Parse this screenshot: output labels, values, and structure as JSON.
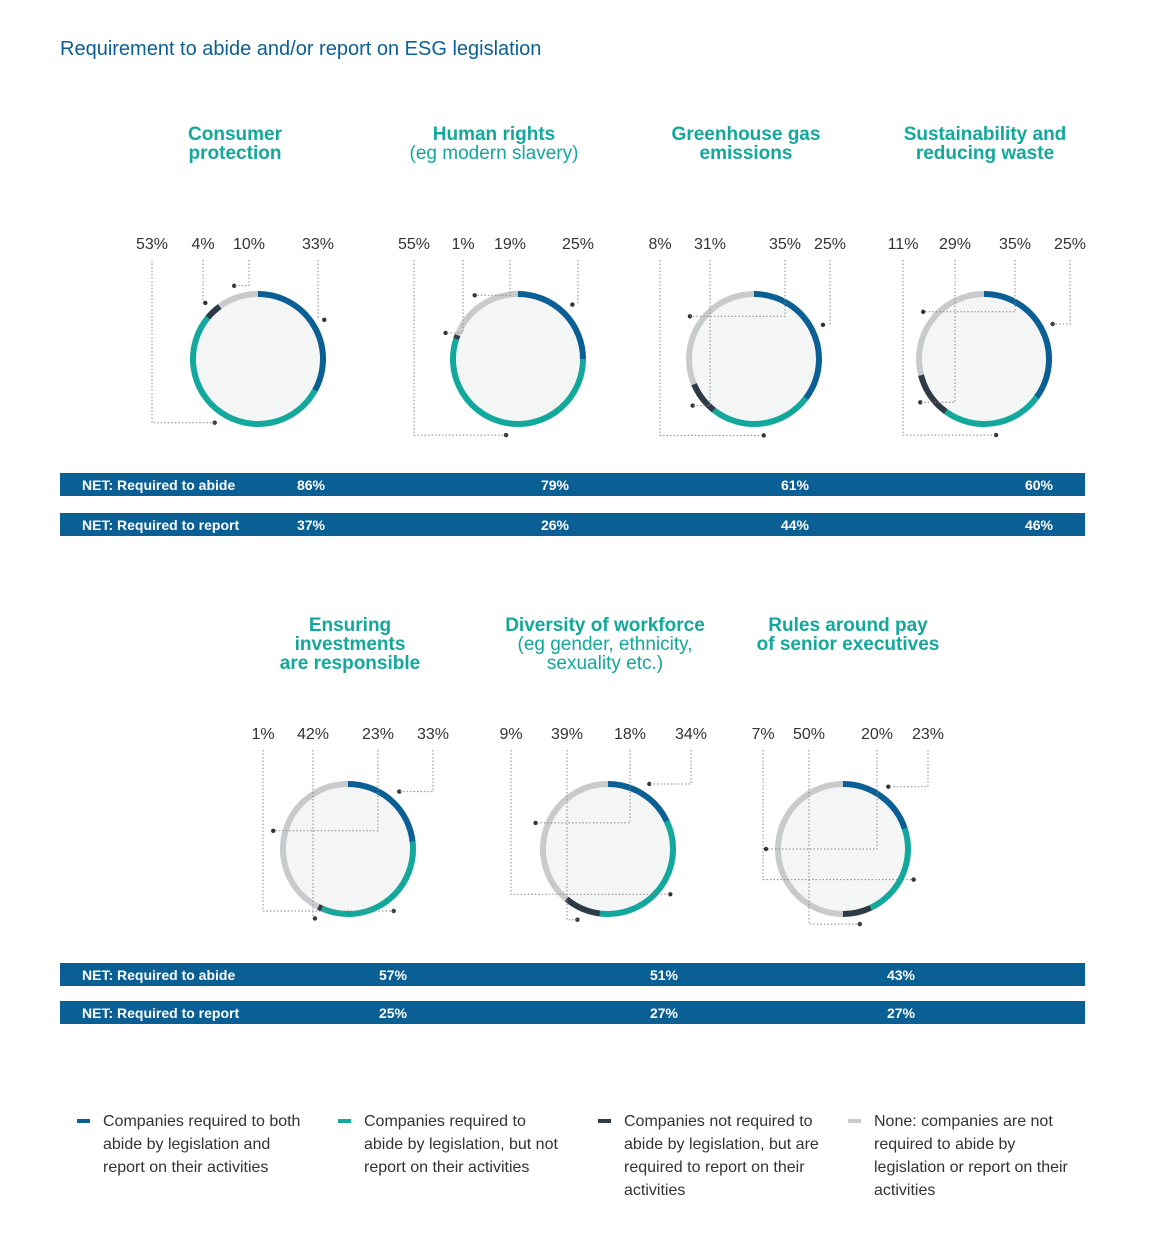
{
  "title": "Requirement to abide and/or report on ESG legislation",
  "colors": {
    "both": "#0a5f95",
    "abide_only": "#12a89c",
    "report_only": "#2e3b47",
    "none": "#c9cacc",
    "fill": "#f4f5f5",
    "net_bar": "#0a5f95"
  },
  "chart_data": [
    {
      "type": "pie",
      "title_bold": "Consumer protection",
      "title_sub": "",
      "categories": [
        "both",
        "abide_only",
        "report_only",
        "none"
      ],
      "values": [
        33,
        53,
        4,
        10
      ],
      "labels": [
        "53%",
        "4%",
        "10%",
        "33%"
      ],
      "net_abide": "86%",
      "net_report": "37%"
    },
    {
      "type": "pie",
      "title_bold": "Human rights",
      "title_sub": "(eg modern slavery)",
      "categories": [
        "both",
        "abide_only",
        "report_only",
        "none"
      ],
      "values": [
        25,
        55,
        1,
        19
      ],
      "labels": [
        "55%",
        "1%",
        "19%",
        "25%"
      ],
      "net_abide": "79%",
      "net_report": "26%"
    },
    {
      "type": "pie",
      "title_bold": "Greenhouse gas emissions",
      "title_sub": "",
      "categories": [
        "both",
        "abide_only",
        "report_only",
        "none"
      ],
      "values": [
        35,
        25,
        8,
        31
      ],
      "labels": [
        "8%",
        "31%",
        "35%",
        "25%"
      ],
      "net_abide": "61%",
      "net_report": "44%"
    },
    {
      "type": "pie",
      "title_bold": "Sustainability and reducing waste",
      "title_sub": "",
      "categories": [
        "both",
        "abide_only",
        "report_only",
        "none"
      ],
      "values": [
        35,
        25,
        11,
        29
      ],
      "labels": [
        "11%",
        "29%",
        "35%",
        "25%"
      ],
      "net_abide": "60%",
      "net_report": "46%"
    },
    {
      "type": "pie",
      "title_bold": "Ensuring investments are responsible",
      "title_sub": "",
      "categories": [
        "both",
        "abide_only",
        "report_only",
        "none"
      ],
      "values": [
        23,
        33,
        1,
        42
      ],
      "labels": [
        "1%",
        "42%",
        "23%",
        "33%"
      ],
      "net_abide": "57%",
      "net_report": "25%"
    },
    {
      "type": "pie",
      "title_bold": "Diversity of workforce",
      "title_sub": "(eg gender, ethnicity, sexuality etc.)",
      "categories": [
        "both",
        "abide_only",
        "report_only",
        "none"
      ],
      "values": [
        18,
        34,
        9,
        39
      ],
      "labels": [
        "9%",
        "39%",
        "18%",
        "34%"
      ],
      "net_abide": "51%",
      "net_report": "27%"
    },
    {
      "type": "pie",
      "title_bold": "Rules around pay of senior executives",
      "title_sub": "",
      "categories": [
        "both",
        "abide_only",
        "report_only",
        "none"
      ],
      "values": [
        20,
        23,
        7,
        50
      ],
      "labels": [
        "7%",
        "50%",
        "20%",
        "23%"
      ],
      "net_abide": "43%",
      "net_report": "27%"
    }
  ],
  "net_labels": {
    "abide": "NET: Required to abide",
    "report": "NET: Required to report"
  },
  "legend": [
    {
      "key": "both",
      "text": "Companies required to both abide by legislation and report on their activities"
    },
    {
      "key": "abide_only",
      "text": "Companies required to abide by legislation, but not report on their activities"
    },
    {
      "key": "report_only",
      "text": "Companies not required to abide by legislation, but are required to report on their activities"
    },
    {
      "key": "none",
      "text": "None: companies are not required to abide by legislation or report on their activities"
    }
  ]
}
